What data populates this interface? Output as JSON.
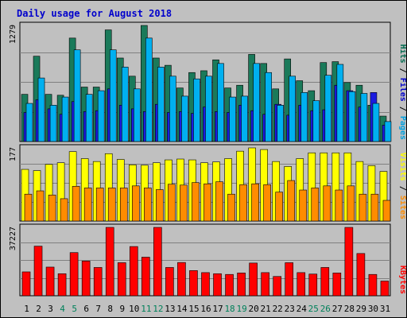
{
  "chart_data": [
    {
      "type": "bar",
      "title": "Daily usage for August 2018",
      "max_label": "1279",
      "legend": [
        {
          "text": "Pages",
          "color": "#00a0e0"
        },
        {
          "text": "Files",
          "color": "#0000cc"
        },
        {
          "text": "Hits",
          "color": "#006a4e"
        }
      ],
      "categories": [
        "1",
        "2",
        "3",
        "4",
        "5",
        "6",
        "7",
        "8",
        "9",
        "10",
        "11",
        "12",
        "13",
        "14",
        "15",
        "16",
        "17",
        "18",
        "19",
        "20",
        "21",
        "22",
        "23",
        "24",
        "25",
        "26",
        "27",
        "28",
        "29",
        "30",
        "31"
      ],
      "weekend_days": [
        "4",
        "5",
        "11",
        "12",
        "18",
        "19",
        "25",
        "26"
      ],
      "ylim": [
        0,
        1279
      ],
      "series": [
        {
          "name": "Hits",
          "color": "#1a7a5a",
          "values": [
            520,
            940,
            520,
            510,
            1140,
            600,
            600,
            1230,
            920,
            720,
            1279,
            920,
            840,
            590,
            760,
            780,
            900,
            590,
            620,
            960,
            860,
            580,
            910,
            670,
            560,
            870,
            880,
            650,
            620,
            400,
            280
          ]
        },
        {
          "name": "Files",
          "color": "#1b1be0",
          "values": [
            320,
            460,
            360,
            300,
            440,
            330,
            340,
            580,
            400,
            360,
            330,
            410,
            320,
            330,
            310,
            380,
            330,
            320,
            400,
            340,
            300,
            410,
            290,
            400,
            340,
            350,
            620,
            560,
            380,
            540,
            180
          ]
        },
        {
          "name": "Pages",
          "color": "#00b0f0",
          "values": [
            420,
            700,
            400,
            490,
            1010,
            520,
            560,
            1010,
            820,
            580,
            1140,
            820,
            720,
            500,
            690,
            720,
            860,
            490,
            500,
            860,
            760,
            400,
            720,
            540,
            450,
            730,
            850,
            550,
            530,
            420,
            220
          ]
        }
      ]
    },
    {
      "type": "bar",
      "max_label": "177",
      "legend": [
        {
          "text": "Sites",
          "color": "#ff8c00"
        },
        {
          "text": "Visits",
          "color": "#ffff00"
        }
      ],
      "categories": [
        "1",
        "2",
        "3",
        "4",
        "5",
        "6",
        "7",
        "8",
        "9",
        "10",
        "11",
        "12",
        "13",
        "14",
        "15",
        "16",
        "17",
        "18",
        "19",
        "20",
        "21",
        "22",
        "23",
        "24",
        "25",
        "26",
        "27",
        "28",
        "29",
        "30",
        "31"
      ],
      "ylim": [
        0,
        177
      ],
      "series": [
        {
          "name": "Visits",
          "color": "#ffff00",
          "values": [
            125,
            122,
            137,
            141,
            168,
            151,
            144,
            163,
            149,
            136,
            135,
            141,
            148,
            150,
            148,
            141,
            143,
            151,
            169,
            177,
            173,
            144,
            132,
            151,
            165,
            165,
            165,
            165,
            144,
            134,
            120
          ]
        },
        {
          "name": "Sites",
          "color": "#ff8c00",
          "values": [
            65,
            73,
            63,
            54,
            84,
            80,
            80,
            80,
            80,
            85,
            80,
            76,
            89,
            87,
            93,
            90,
            95,
            65,
            88,
            90,
            88,
            70,
            98,
            75,
            80,
            85,
            75,
            85,
            65,
            65,
            50
          ]
        }
      ]
    },
    {
      "type": "bar",
      "max_label": "37227",
      "legend": [
        {
          "text": "KBytes",
          "color": "#ff0000"
        }
      ],
      "categories": [
        "1",
        "2",
        "3",
        "4",
        "5",
        "6",
        "7",
        "8",
        "9",
        "10",
        "11",
        "12",
        "13",
        "14",
        "15",
        "16",
        "17",
        "18",
        "19",
        "20",
        "21",
        "22",
        "23",
        "24",
        "25",
        "26",
        "27",
        "28",
        "29",
        "30",
        "31"
      ],
      "ylim": [
        0,
        37227
      ],
      "series": [
        {
          "name": "KBytes",
          "color": "#ff0000",
          "values": [
            13000,
            27000,
            15600,
            12000,
            23500,
            18900,
            15400,
            37227,
            18000,
            26800,
            21000,
            37227,
            15400,
            18100,
            13700,
            12600,
            12000,
            11600,
            12400,
            17800,
            12600,
            10500,
            18000,
            12600,
            11800,
            15400,
            12400,
            37227,
            23000,
            11600,
            8000
          ]
        }
      ]
    }
  ]
}
